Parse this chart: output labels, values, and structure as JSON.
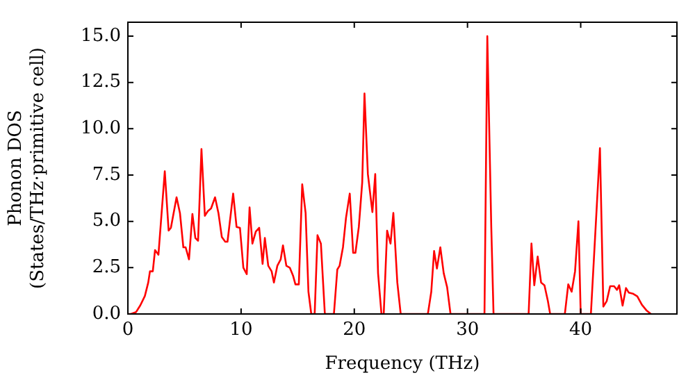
{
  "chart_data": {
    "type": "line",
    "xlabel": "Frequency (THz)",
    "ylabel": "Phonon DOS\n(States/THz·primitive cell)",
    "xlim": [
      0,
      48.5
    ],
    "xticks": [
      0,
      10,
      20,
      30,
      40
    ],
    "ylim": [
      0,
      15.75
    ],
    "yticks": [
      {
        "value": 0,
        "label": "0.0"
      },
      2.5,
      {
        "value": 5,
        "label": "5.0"
      },
      7.5,
      {
        "value": 10,
        "label": "10.0"
      },
      12.5,
      {
        "value": 15,
        "label": "15.0"
      }
    ],
    "grid": false,
    "legend": false,
    "marker": "none",
    "line_style": "solid",
    "series": [
      {
        "color": "#ff0000",
        "x": [
          0,
          0.27,
          0.72,
          1.1,
          1.5,
          1.8,
          1.95,
          2.2,
          2.4,
          2.7,
          3.26,
          3.6,
          3.8,
          4.3,
          4.6,
          4.9,
          5.1,
          5.4,
          5.7,
          5.96,
          6.2,
          6.5,
          6.8,
          7.06,
          7.35,
          7.7,
          8.0,
          8.3,
          8.6,
          8.8,
          9.3,
          9.6,
          9.9,
          10.2,
          10.5,
          10.75,
          11.0,
          11.3,
          11.6,
          11.9,
          12.1,
          12.4,
          12.7,
          12.9,
          13.2,
          13.5,
          13.7,
          14.0,
          14.3,
          14.6,
          14.8,
          15.1,
          15.4,
          15.7,
          15.95,
          16.2,
          16.5,
          16.75,
          17.05,
          17.4,
          18.2,
          18.5,
          18.7,
          19.0,
          19.27,
          19.6,
          19.9,
          20.1,
          20.4,
          20.7,
          20.9,
          21.2,
          21.6,
          21.85,
          22.1,
          22.4,
          22.6,
          22.9,
          23.2,
          23.45,
          23.8,
          24.1,
          26.5,
          26.8,
          27.05,
          27.3,
          27.6,
          27.9,
          28.2,
          28.5,
          31.5,
          31.75,
          32.1,
          32.3,
          35.4,
          35.65,
          35.9,
          36.2,
          36.5,
          36.8,
          37.1,
          37.3,
          38.6,
          38.9,
          39.2,
          39.5,
          39.8,
          40.0,
          40.9,
          41.7,
          42.0,
          42.3,
          42.6,
          42.95,
          43.2,
          43.4,
          43.7,
          44.0,
          44.25,
          44.6,
          45.0,
          45.4,
          45.8,
          46.2
        ],
        "values": [
          0,
          0,
          0.1,
          0.47,
          0.97,
          1.7,
          2.3,
          2.3,
          3.45,
          3.2,
          7.7,
          4.5,
          4.65,
          6.3,
          5.45,
          3.6,
          3.6,
          2.95,
          5.4,
          4.1,
          3.95,
          8.9,
          5.3,
          5.55,
          5.7,
          6.3,
          5.45,
          4.15,
          3.9,
          3.9,
          6.5,
          4.7,
          4.65,
          2.5,
          2.15,
          5.75,
          3.8,
          4.45,
          4.65,
          2.7,
          4.1,
          2.6,
          2.3,
          1.7,
          2.6,
          2.95,
          3.7,
          2.6,
          2.5,
          2.05,
          1.6,
          1.6,
          7.0,
          5.45,
          1.2,
          0,
          0,
          4.25,
          3.8,
          0,
          0,
          2.4,
          2.6,
          3.6,
          5.2,
          6.5,
          3.3,
          3.3,
          4.7,
          7.1,
          11.9,
          7.55,
          5.5,
          7.55,
          2.2,
          0,
          0,
          4.5,
          3.8,
          5.45,
          1.7,
          0,
          0,
          1.2,
          3.4,
          2.45,
          3.6,
          2.2,
          1.45,
          0,
          0,
          15.0,
          4.7,
          0,
          0,
          3.8,
          1.55,
          3.1,
          1.7,
          1.55,
          0.7,
          0,
          0,
          1.6,
          1.2,
          2.3,
          5.0,
          0,
          0,
          8.95,
          0.4,
          0.7,
          1.5,
          1.5,
          1.3,
          1.55,
          0.45,
          1.4,
          1.15,
          1.1,
          0.95,
          0.5,
          0.2,
          0
        ]
      }
    ]
  }
}
